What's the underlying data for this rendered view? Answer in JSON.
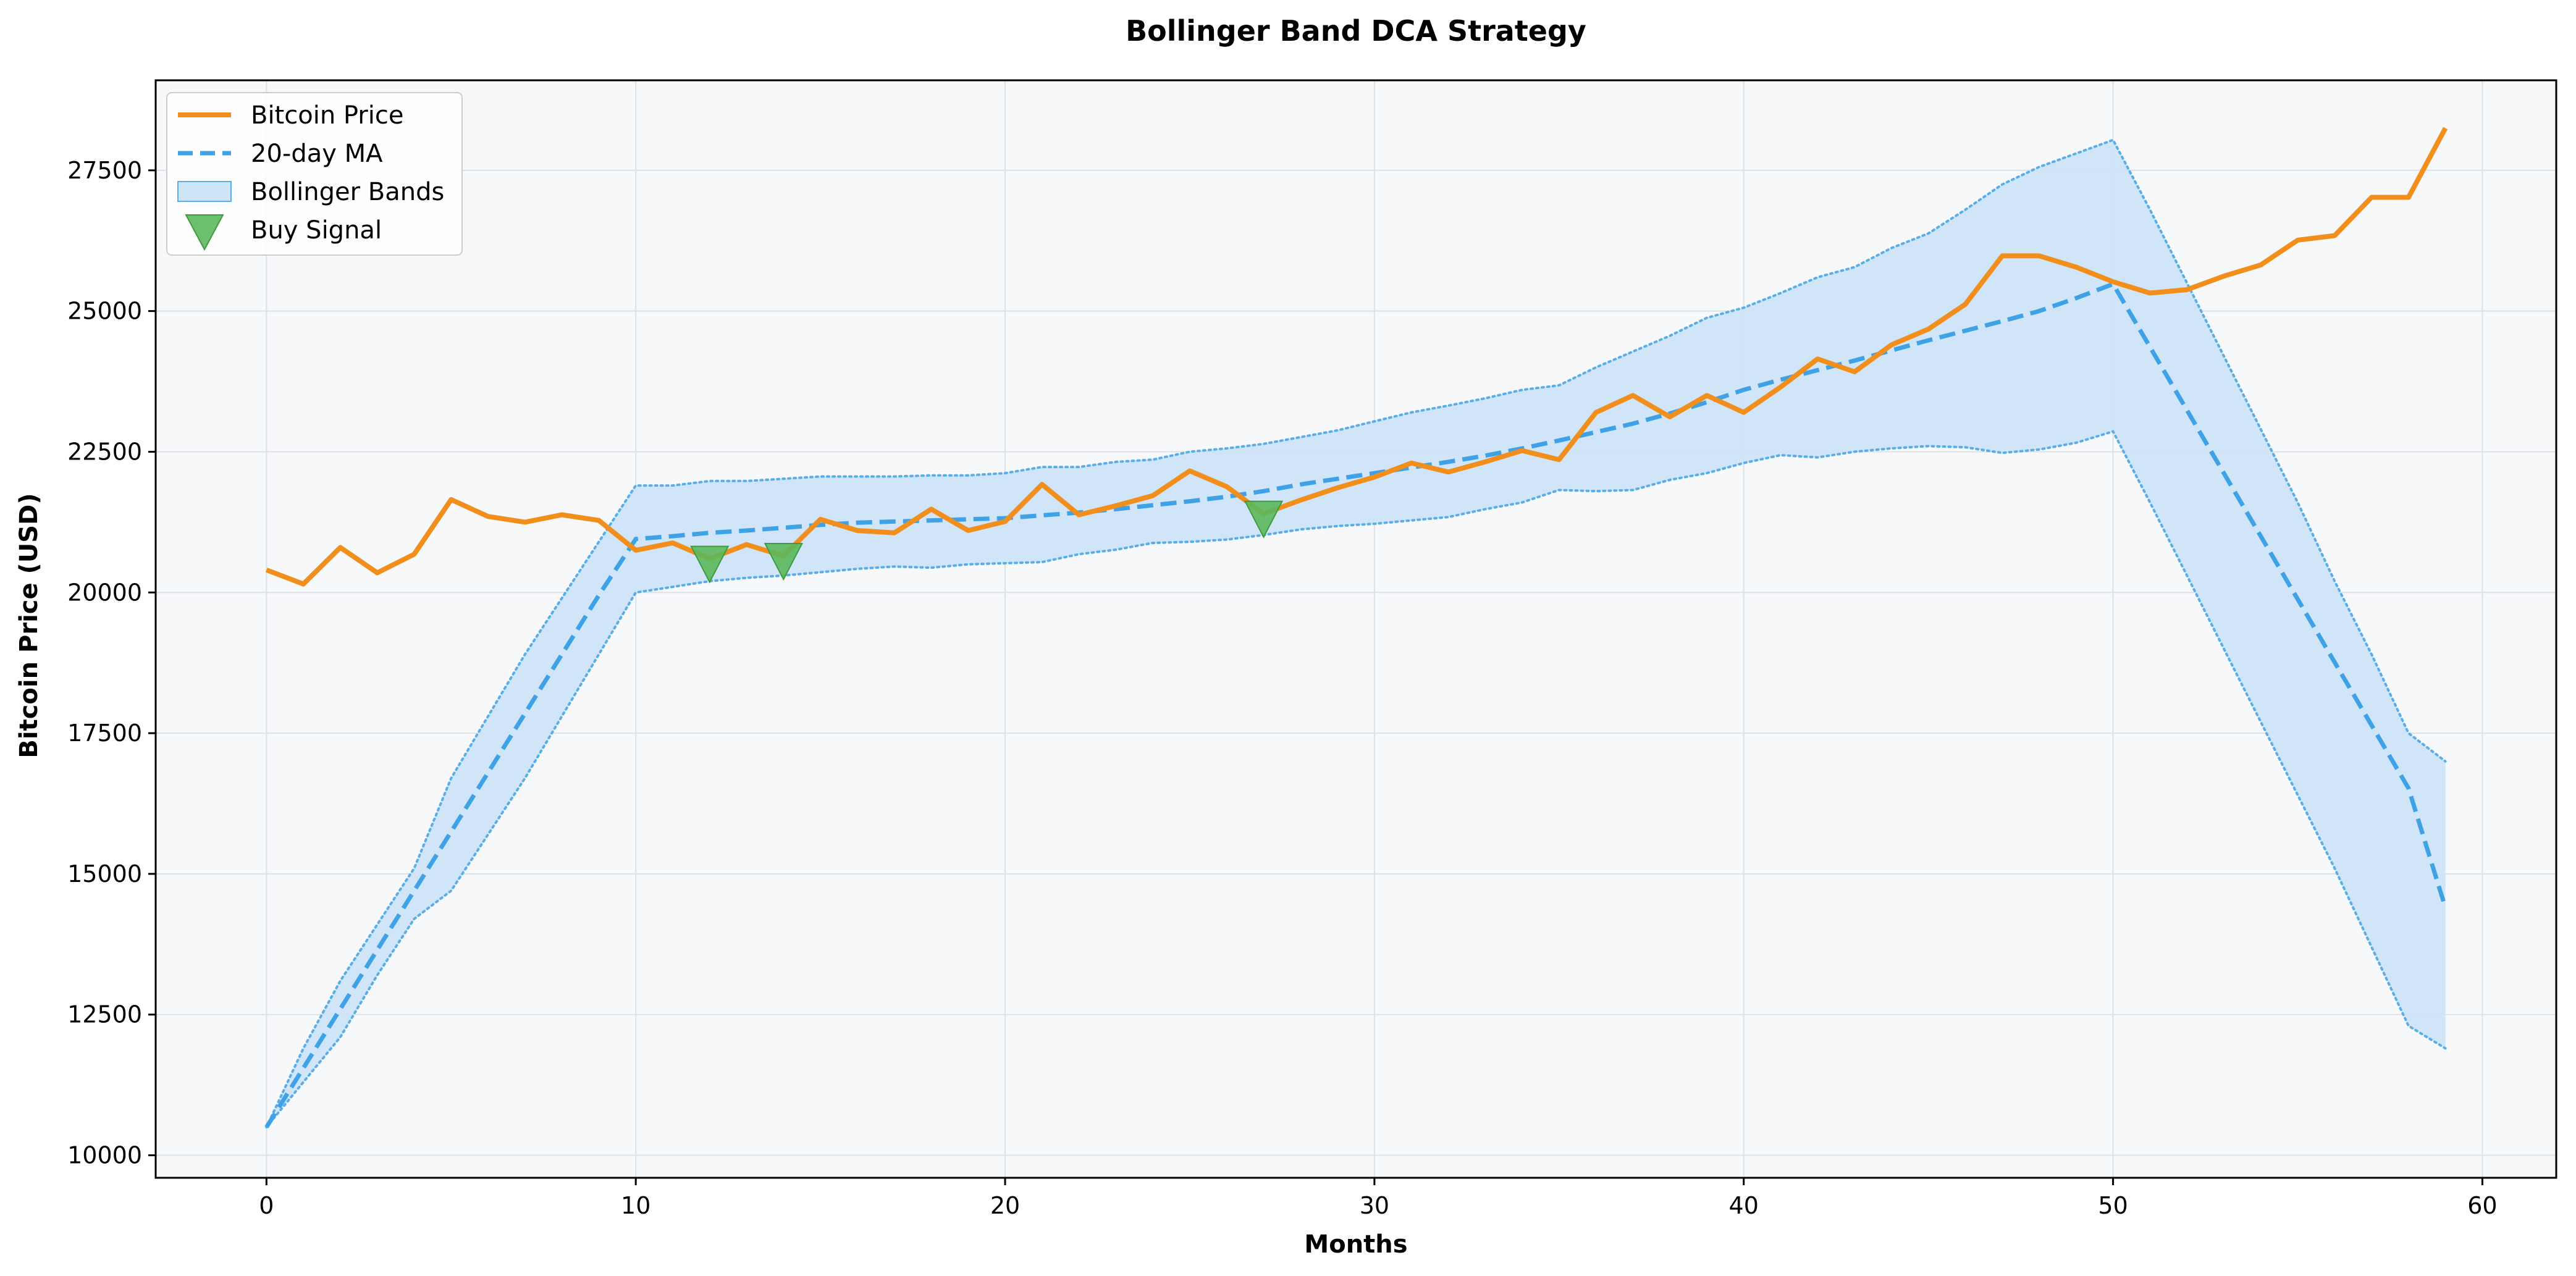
{
  "chart_data": {
    "type": "line",
    "title": "Bollinger Band DCA Strategy",
    "xlabel": "Months",
    "ylabel": "Bitcoin Price (USD)",
    "xlim": [
      -3,
      62
    ],
    "ylim": [
      9600,
      29100
    ],
    "grid": true,
    "legend_position": "top-left",
    "x_ticks": [
      0,
      10,
      20,
      30,
      40,
      50,
      60
    ],
    "y_ticks": [
      10000,
      12500,
      15000,
      17500,
      20000,
      22500,
      25000,
      27500
    ],
    "x": [
      0,
      1,
      2,
      3,
      4,
      5,
      6,
      7,
      8,
      9,
      10,
      11,
      12,
      13,
      14,
      15,
      16,
      17,
      18,
      19,
      20,
      21,
      22,
      23,
      24,
      25,
      26,
      27,
      28,
      29,
      30,
      31,
      32,
      33,
      34,
      35,
      36,
      37,
      38,
      39,
      40,
      41,
      42,
      43,
      44,
      45,
      46,
      47,
      48,
      49,
      50,
      51,
      52,
      53,
      54,
      55,
      56,
      57,
      58,
      59
    ],
    "series": [
      {
        "name": "Bitcoin Price",
        "kind": "line",
        "color": "#f28e1c",
        "values": [
          20400,
          20150,
          20800,
          20350,
          20680,
          21650,
          21350,
          21250,
          21380,
          21280,
          20750,
          20880,
          20600,
          20850,
          20650,
          21300,
          21100,
          21060,
          21480,
          21100,
          21260,
          21920,
          21380,
          21540,
          21720,
          22160,
          21880,
          21400,
          21640,
          21860,
          22050,
          22300,
          22140,
          22320,
          22520,
          22360,
          23200,
          23500,
          23120,
          23500,
          23200,
          23650,
          24150,
          23920,
          24400,
          24680,
          25120,
          25980,
          25980,
          25780,
          25520,
          25320,
          25380,
          25620,
          25820,
          26260,
          26340,
          27020,
          27020,
          28250
        ]
      },
      {
        "name": "20-day MA",
        "kind": "dashed-line",
        "color": "#3fa1e6",
        "values": [
          10500,
          11550,
          12600,
          13650,
          14700,
          15750,
          16800,
          17850,
          18900,
          19950,
          20950,
          21000,
          21060,
          21100,
          21150,
          21200,
          21240,
          21260,
          21280,
          21300,
          21320,
          21370,
          21420,
          21480,
          21550,
          21620,
          21700,
          21800,
          21920,
          22020,
          22120,
          22220,
          22320,
          22430,
          22560,
          22700,
          22850,
          23000,
          23180,
          23380,
          23600,
          23780,
          23950,
          24120,
          24300,
          24480,
          24650,
          24820,
          25000,
          25230,
          25480,
          24360,
          23240,
          22120,
          21000,
          19880,
          18760,
          17640,
          16520,
          14400
        ]
      },
      {
        "name": "Bollinger Bands",
        "kind": "band",
        "color": "#cde4f7",
        "edge_color": "#5aaee8",
        "upper": [
          10500,
          11900,
          13100,
          14100,
          15100,
          16700,
          17800,
          18900,
          19900,
          20900,
          21900,
          21900,
          21980,
          21980,
          22020,
          22060,
          22060,
          22060,
          22080,
          22080,
          22120,
          22230,
          22230,
          22320,
          22360,
          22500,
          22560,
          22640,
          22760,
          22880,
          23040,
          23200,
          23320,
          23450,
          23600,
          23680,
          24000,
          24280,
          24560,
          24880,
          25060,
          25320,
          25600,
          25780,
          26120,
          26380,
          26800,
          27250,
          27560,
          27800,
          28040,
          26800,
          25500,
          24200,
          22900,
          21600,
          20200,
          18900,
          17500,
          17000
        ],
        "lower": [
          10500,
          11300,
          12100,
          13200,
          14200,
          14700,
          15700,
          16700,
          17800,
          18900,
          20000,
          20100,
          20200,
          20260,
          20300,
          20360,
          20420,
          20460,
          20440,
          20500,
          20520,
          20540,
          20680,
          20760,
          20880,
          20900,
          20940,
          21020,
          21120,
          21180,
          21220,
          21280,
          21340,
          21480,
          21600,
          21820,
          21800,
          21820,
          22000,
          22120,
          22300,
          22440,
          22400,
          22500,
          22560,
          22600,
          22580,
          22480,
          22540,
          22660,
          22860,
          21600,
          20300,
          19000,
          17700,
          16400,
          15100,
          13700,
          12300,
          11900
        ]
      }
    ],
    "buy_signals": {
      "name": "Buy Signal",
      "color": "#5cb85c",
      "x": [
        12,
        14,
        27
      ],
      "y": [
        20600,
        20650,
        21400
      ]
    }
  }
}
